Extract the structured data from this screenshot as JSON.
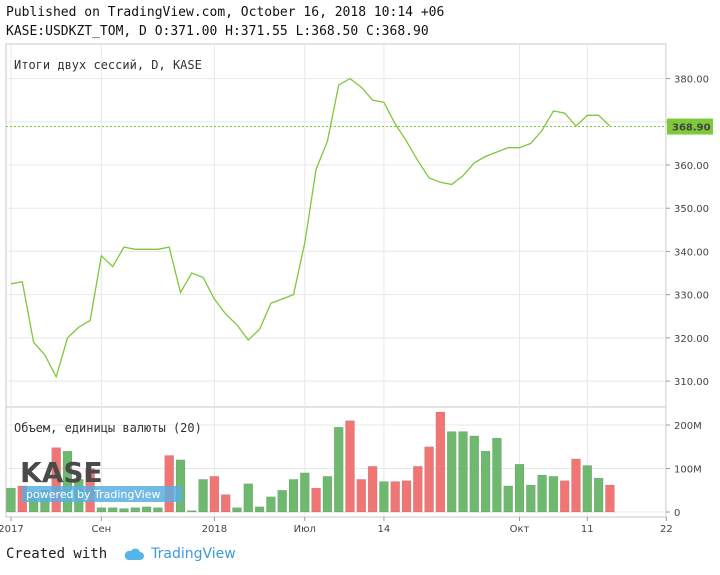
{
  "header": {
    "published": "Published on TradingView.com, October 16, 2018 10:14 +06",
    "ohlc": "KASE:USDKZT_TOM, D O:371.00 H:371.55 L:368.50 C:368.90"
  },
  "footer": {
    "created": "Created with",
    "brand": "TradingView"
  },
  "logo": {
    "text": "KASE",
    "sub": "powered by TradingView"
  },
  "colors": {
    "line": "#7ec83a",
    "up": "#6fb86f",
    "down": "#f07676",
    "price_tag": "#7ec83a",
    "grid": "#e8e8e8"
  },
  "chart_data": [
    {
      "type": "line",
      "title": "Итоги двух сессий, D, KASE",
      "ylim": [
        304,
        388
      ],
      "yticks": [
        "380.00",
        "370.00",
        "360.00",
        "350.00",
        "340.00",
        "330.00",
        "320.00",
        "310.00"
      ],
      "ytick_values": [
        380,
        370,
        360,
        350,
        340,
        330,
        320,
        310
      ],
      "last_price": 368.9,
      "last_price_label": "368.90",
      "xticks": [
        {
          "label": "2017",
          "i": 0
        },
        {
          "label": "Сен",
          "i": 8
        },
        {
          "label": "2018",
          "i": 18
        },
        {
          "label": "Июл",
          "i": 26
        },
        {
          "label": "14",
          "i": 33
        },
        {
          "label": "Окт",
          "i": 45
        },
        {
          "label": "11",
          "i": 51
        },
        {
          "label": "22",
          "i": 58
        }
      ],
      "values": [
        332.5,
        333,
        319,
        316,
        311,
        320,
        322.5,
        324,
        339,
        336.5,
        341,
        340.5,
        340.5,
        340.5,
        341,
        330.5,
        335,
        334,
        329,
        325.5,
        323,
        319.5,
        322,
        328,
        329,
        330,
        342,
        359,
        365.5,
        378.5,
        380,
        378,
        375,
        374.5,
        369.5,
        365.5,
        361,
        357,
        356,
        355.5,
        357.5,
        360.5,
        362,
        363,
        364,
        364,
        365,
        368,
        372.5,
        372,
        369,
        371.5,
        371.5,
        369
      ]
    },
    {
      "type": "bar",
      "title": "Объем, единицы валюты (20)",
      "ylim": [
        0,
        230
      ],
      "yticks": [
        "200M",
        "100M",
        "0"
      ],
      "ytick_values": [
        200,
        100,
        0
      ],
      "values": [
        55,
        60,
        45,
        50,
        148,
        140,
        75,
        100,
        10,
        10,
        8,
        10,
        12,
        10,
        130,
        120,
        3,
        75,
        82,
        40,
        10,
        65,
        12,
        35,
        50,
        75,
        90,
        55,
        82,
        195,
        210,
        75,
        105,
        70,
        70,
        72,
        105,
        150,
        230,
        185,
        185,
        175,
        140,
        170,
        60,
        110,
        62,
        85,
        82,
        72,
        122,
        107,
        78,
        62
      ],
      "directions": [
        "up",
        "down",
        "up",
        "up",
        "down",
        "up",
        "up",
        "down",
        "up",
        "up",
        "up",
        "up",
        "up",
        "up",
        "down",
        "up",
        "up",
        "up",
        "down",
        "down",
        "up",
        "up",
        "up",
        "up",
        "up",
        "up",
        "up",
        "down",
        "up",
        "up",
        "down",
        "down",
        "down",
        "up",
        "down",
        "down",
        "down",
        "down",
        "down",
        "up",
        "up",
        "up",
        "up",
        "up",
        "up",
        "up",
        "up",
        "up",
        "up",
        "down",
        "down",
        "up",
        "up",
        "down"
      ]
    }
  ]
}
